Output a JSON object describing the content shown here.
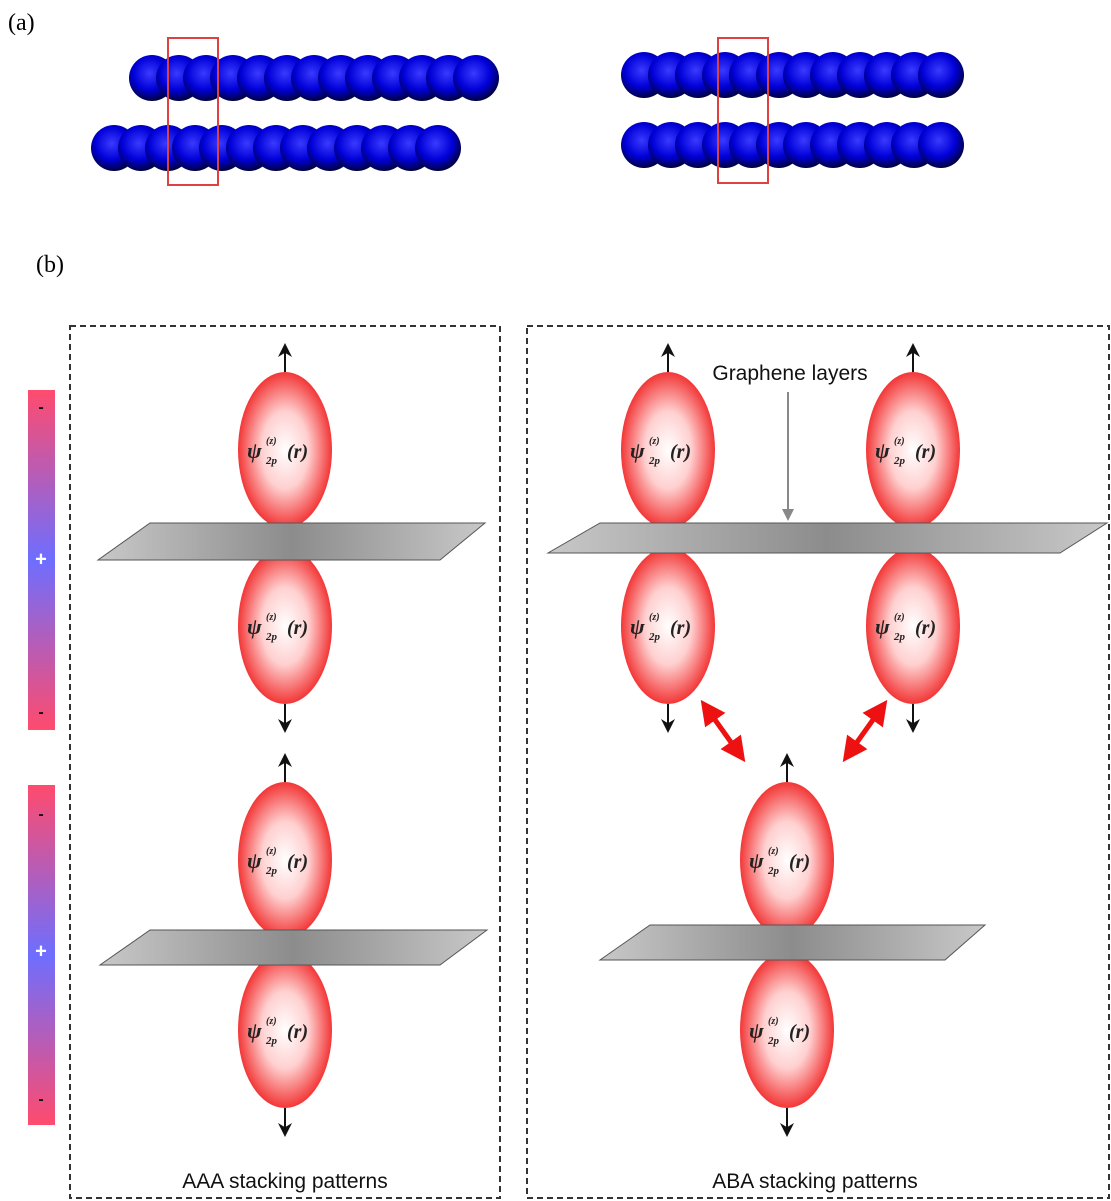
{
  "panel_a": {
    "label": "(a)"
  },
  "panel_b": {
    "label": "(b)",
    "orbital_label": {
      "symbol": "ψ",
      "sup": "(z)",
      "sub": "2p",
      "arg": "(r)"
    },
    "colorbar_signs": [
      "-",
      "+",
      "-"
    ],
    "annotation": "Graphene layers",
    "captions": [
      "AAA stacking patterns",
      "ABA stacking patterns"
    ]
  }
}
